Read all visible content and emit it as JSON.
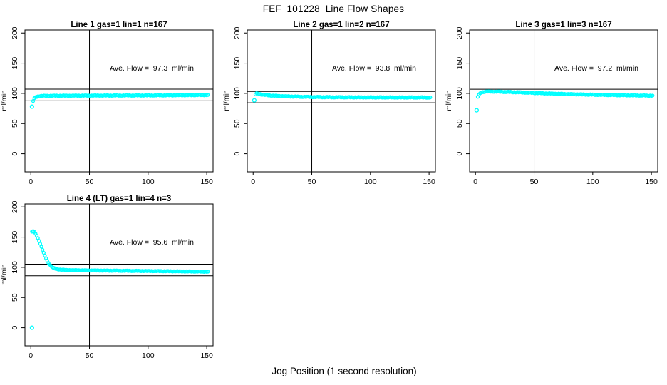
{
  "page_title": "FEF_101228  Line Flow Shapes",
  "x_axis_label": "Jog Position (1 second resolution)",
  "colors": {
    "background": "#ffffff",
    "axis": "#000000",
    "points": "#00ffff"
  },
  "chart_data": [
    {
      "type": "scatter",
      "title": "Line 1 gas=1 lin=1 n=167",
      "ave_flow": 97.3,
      "ave_flow_text": "Ave. Flow =  97.3  ml/min",
      "n": 167,
      "ylabel": "ml/min",
      "x_ticks": [
        0,
        50,
        100,
        150
      ],
      "y_ticks": [
        0,
        50,
        100,
        150,
        200
      ],
      "xlim": [
        -5,
        155.4
      ],
      "ylim": [
        -30,
        205
      ],
      "ref_lines": [
        107.0,
        87.6
      ],
      "vline_x": 50,
      "x_range": [
        2,
        151
      ],
      "band_jitter": 0.7,
      "smooth_head": 0,
      "outliers": [
        [
          1,
          78
        ]
      ],
      "anchors": [
        [
          2,
          87.5
        ],
        [
          3,
          91.5
        ],
        [
          4,
          93.5
        ],
        [
          5,
          94.5
        ],
        [
          7,
          95.3
        ],
        [
          10,
          95.8
        ],
        [
          15,
          96.0
        ],
        [
          25,
          96.1
        ],
        [
          40,
          96.2
        ],
        [
          60,
          96.4
        ],
        [
          80,
          96.5
        ],
        [
          100,
          96.6
        ],
        [
          125,
          96.9
        ],
        [
          151,
          97.3
        ]
      ]
    },
    {
      "type": "scatter",
      "title": "Line 2 gas=1 lin=2 n=167",
      "ave_flow": 93.8,
      "ave_flow_text": "Ave. Flow =  93.8  ml/min",
      "n": 167,
      "ylabel": "ml/min",
      "x_ticks": [
        0,
        50,
        100,
        150
      ],
      "y_ticks": [
        0,
        50,
        100,
        150,
        200
      ],
      "xlim": [
        -5,
        155.4
      ],
      "ylim": [
        -30,
        205
      ],
      "ref_lines": [
        103.2,
        84.4
      ],
      "vline_x": 50,
      "x_range": [
        2,
        151
      ],
      "band_jitter": 0.7,
      "smooth_head": 0,
      "outliers": [
        [
          1,
          88.5
        ]
      ],
      "anchors": [
        [
          2,
          98.5
        ],
        [
          3,
          99.8
        ],
        [
          4,
          99.6
        ],
        [
          5,
          99.0
        ],
        [
          7,
          98.2
        ],
        [
          10,
          97.4
        ],
        [
          14,
          96.6
        ],
        [
          20,
          95.8
        ],
        [
          28,
          95.1
        ],
        [
          38,
          94.5
        ],
        [
          50,
          94.0
        ],
        [
          70,
          93.6
        ],
        [
          95,
          93.4
        ],
        [
          120,
          93.3
        ],
        [
          151,
          93.2
        ]
      ]
    },
    {
      "type": "scatter",
      "title": "Line 3 gas=1 lin=3 n=167",
      "ave_flow": 97.2,
      "ave_flow_text": "Ave. Flow =  97.2  ml/min",
      "n": 167,
      "ylabel": "ml/min",
      "x_ticks": [
        0,
        50,
        100,
        150
      ],
      "y_ticks": [
        0,
        50,
        100,
        150,
        200
      ],
      "xlim": [
        -5,
        155.4
      ],
      "ylim": [
        -30,
        205
      ],
      "ref_lines": [
        106.9,
        87.5
      ],
      "vline_x": 50,
      "x_range": [
        2,
        151
      ],
      "band_jitter": 0.7,
      "smooth_head": 0,
      "outliers": [
        [
          1,
          72
        ]
      ],
      "anchors": [
        [
          2,
          94.5
        ],
        [
          3,
          97.5
        ],
        [
          4,
          100.0
        ],
        [
          5,
          101.5
        ],
        [
          7,
          102.5
        ],
        [
          10,
          103.0
        ],
        [
          15,
          103.0
        ],
        [
          22,
          102.6
        ],
        [
          30,
          102.2
        ],
        [
          40,
          101.5
        ],
        [
          52,
          100.5
        ],
        [
          65,
          99.6
        ],
        [
          80,
          98.7
        ],
        [
          95,
          98.0
        ],
        [
          110,
          97.4
        ],
        [
          130,
          96.8
        ],
        [
          151,
          96.2
        ]
      ]
    },
    {
      "type": "scatter",
      "title": "Line 4 (LT) gas=1 lin=4 n=3",
      "ave_flow": 95.6,
      "ave_flow_text": "Ave. Flow =  95.6  ml/min",
      "n": 3,
      "ylabel": "ml/min",
      "x_ticks": [
        0,
        50,
        100,
        150
      ],
      "y_ticks": [
        0,
        50,
        100,
        150,
        200
      ],
      "xlim": [
        -5,
        155.4
      ],
      "ylim": [
        -30,
        205
      ],
      "ref_lines": [
        105.2,
        86.0
      ],
      "vline_x": 50,
      "x_range": [
        1,
        151
      ],
      "band_jitter": 0.55,
      "smooth_head": 20,
      "outliers": [
        [
          1,
          0
        ]
      ],
      "anchors": [
        [
          1,
          159.0
        ],
        [
          2,
          160.0
        ],
        [
          3,
          158.5
        ],
        [
          4,
          156.0
        ],
        [
          5,
          152.5
        ],
        [
          6,
          148.5
        ],
        [
          7,
          144.0
        ],
        [
          8,
          139.0
        ],
        [
          9,
          134.0
        ],
        [
          10,
          129.0
        ],
        [
          11,
          124.0
        ],
        [
          12,
          119.5
        ],
        [
          13,
          115.0
        ],
        [
          14,
          111.0
        ],
        [
          15,
          107.5
        ],
        [
          16,
          104.8
        ],
        [
          17,
          102.6
        ],
        [
          18,
          100.8
        ],
        [
          19,
          99.4
        ],
        [
          20,
          98.4
        ],
        [
          22,
          97.2
        ],
        [
          25,
          96.3
        ],
        [
          30,
          95.6
        ],
        [
          38,
          95.2
        ],
        [
          50,
          94.9
        ],
        [
          65,
          94.6
        ],
        [
          80,
          94.3
        ],
        [
          100,
          93.9
        ],
        [
          120,
          93.5
        ],
        [
          151,
          92.8
        ]
      ]
    }
  ]
}
